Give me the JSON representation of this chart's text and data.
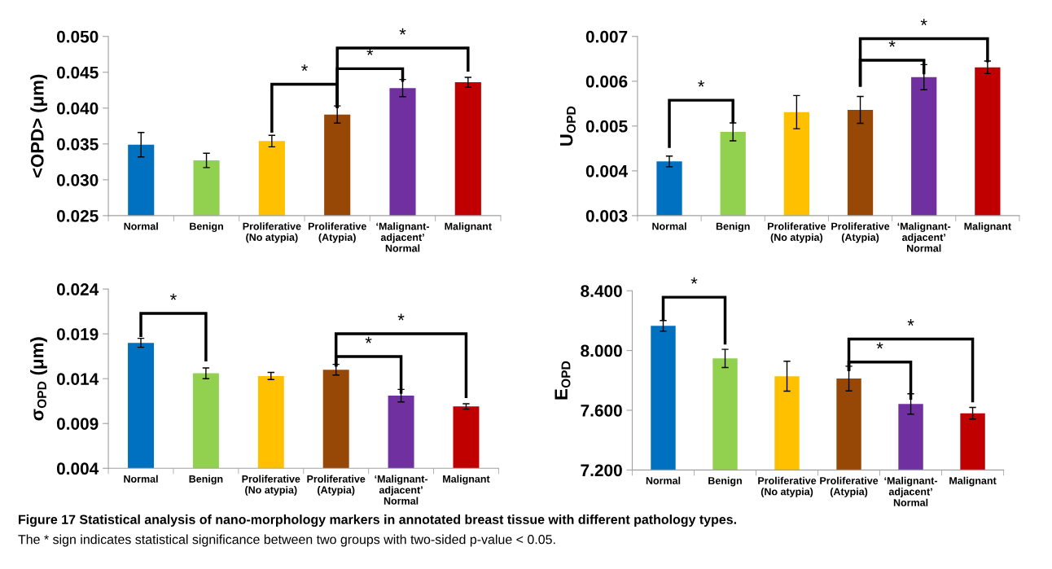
{
  "chart_data": [
    {
      "type": "bar",
      "ylabel": "<OPD> (μm)",
      "categories": [
        "Normal",
        "Benign",
        "Proliferative\n(No atypia)",
        "Proliferative\n(Atypia)",
        "‘Malignant-\nadjacent’\nNormal",
        "Malignant"
      ],
      "values": [
        0.0349,
        0.0327,
        0.0354,
        0.0391,
        0.0428,
        0.0436
      ],
      "errors": [
        0.0017,
        0.001,
        0.0008,
        0.0012,
        0.0012,
        0.0007
      ],
      "colors": [
        "#0070c0",
        "#92d050",
        "#ffc000",
        "#974706",
        "#7030a0",
        "#c00000"
      ],
      "ylim": [
        0.025,
        0.05
      ],
      "yticks": [
        {
          "value": 0.025,
          "label": "0.025"
        },
        {
          "value": 0.03,
          "label": "0.030"
        },
        {
          "value": 0.035,
          "label": "0.035"
        },
        {
          "value": 0.04,
          "label": "0.040"
        },
        {
          "value": 0.045,
          "label": "0.045"
        },
        {
          "value": 0.05,
          "label": "0.050"
        }
      ],
      "annotations": [
        "*",
        "*",
        "*"
      ]
    },
    {
      "type": "bar",
      "ylabel": "U$_{OPD}$",
      "categories": [
        "Normal",
        "Benign",
        "Proliferative\n(No atypia)",
        "Proliferative\n(Atypia)",
        "‘Malignant-\nadjacent’\nNormal",
        "Malignant"
      ],
      "values": [
        0.00421,
        0.00487,
        0.00531,
        0.00536,
        0.00609,
        0.00631
      ],
      "errors": [
        0.00012,
        0.0002,
        0.00037,
        0.0003,
        0.00028,
        0.00014
      ],
      "colors": [
        "#0070c0",
        "#92d050",
        "#ffc000",
        "#974706",
        "#7030a0",
        "#c00000"
      ],
      "ylim": [
        0.003,
        0.007
      ],
      "yticks": [
        {
          "value": 0.003,
          "label": "0.003"
        },
        {
          "value": 0.004,
          "label": "0.004"
        },
        {
          "value": 0.005,
          "label": "0.005"
        },
        {
          "value": 0.006,
          "label": "0.006"
        },
        {
          "value": 0.007,
          "label": "0.007"
        }
      ],
      "annotations": [
        "*",
        "*",
        "*"
      ]
    },
    {
      "type": "bar",
      "ylabel": "σ$_{OPD}$ (μm)",
      "categories": [
        "Normal",
        "Benign",
        "Proliferative\n(No atypia)",
        "Proliferative\n(Atypia)",
        "‘Malignant-\nadjacent’\nNormal",
        "Malignant"
      ],
      "values": [
        0.018,
        0.0146,
        0.0143,
        0.015,
        0.0121,
        0.0109
      ],
      "errors": [
        0.0005,
        0.0006,
        0.0004,
        0.0006,
        0.0007,
        0.0003
      ],
      "colors": [
        "#0070c0",
        "#92d050",
        "#ffc000",
        "#974706",
        "#7030a0",
        "#c00000"
      ],
      "ylim": [
        0.004,
        0.024
      ],
      "yticks": [
        {
          "value": 0.004,
          "label": "0.004"
        },
        {
          "value": 0.009,
          "label": "0.009"
        },
        {
          "value": 0.014,
          "label": "0.014"
        },
        {
          "value": 0.019,
          "label": "0.019"
        },
        {
          "value": 0.024,
          "label": "0.024"
        }
      ],
      "annotations": [
        "*",
        "*",
        "*"
      ]
    },
    {
      "type": "bar",
      "ylabel": "E$_{OPD}$",
      "categories": [
        "Normal",
        "Benign",
        "Proliferative\n(No atypia)",
        "Proliferative\n(Atypia)",
        "‘Malignant-\nadjacent’\nNormal",
        "Malignant"
      ],
      "values": [
        8.165,
        7.947,
        7.828,
        7.812,
        7.642,
        7.58
      ],
      "errors": [
        0.036,
        0.061,
        0.1,
        0.083,
        0.068,
        0.039
      ],
      "colors": [
        "#0070c0",
        "#92d050",
        "#ffc000",
        "#974706",
        "#7030a0",
        "#c00000"
      ],
      "ylim": [
        7.2,
        8.4
      ],
      "yticks": [
        {
          "value": 7.2,
          "label": "7.200"
        },
        {
          "value": 7.6,
          "label": "7.600"
        },
        {
          "value": 8.0,
          "label": "8.000"
        },
        {
          "value": 8.4,
          "label": "8.400"
        }
      ],
      "annotations": [
        "*",
        "*",
        "*"
      ]
    },
    {
      "type": "other",
      "title": "Figure 17 Statistical analysis of nano-morphology markers in annotated breast tissue with different pathology types.",
      "annotations": [
        "The * sign indicates statistical significance between two groups with two-sided p-value < 0.05."
      ]
    }
  ]
}
